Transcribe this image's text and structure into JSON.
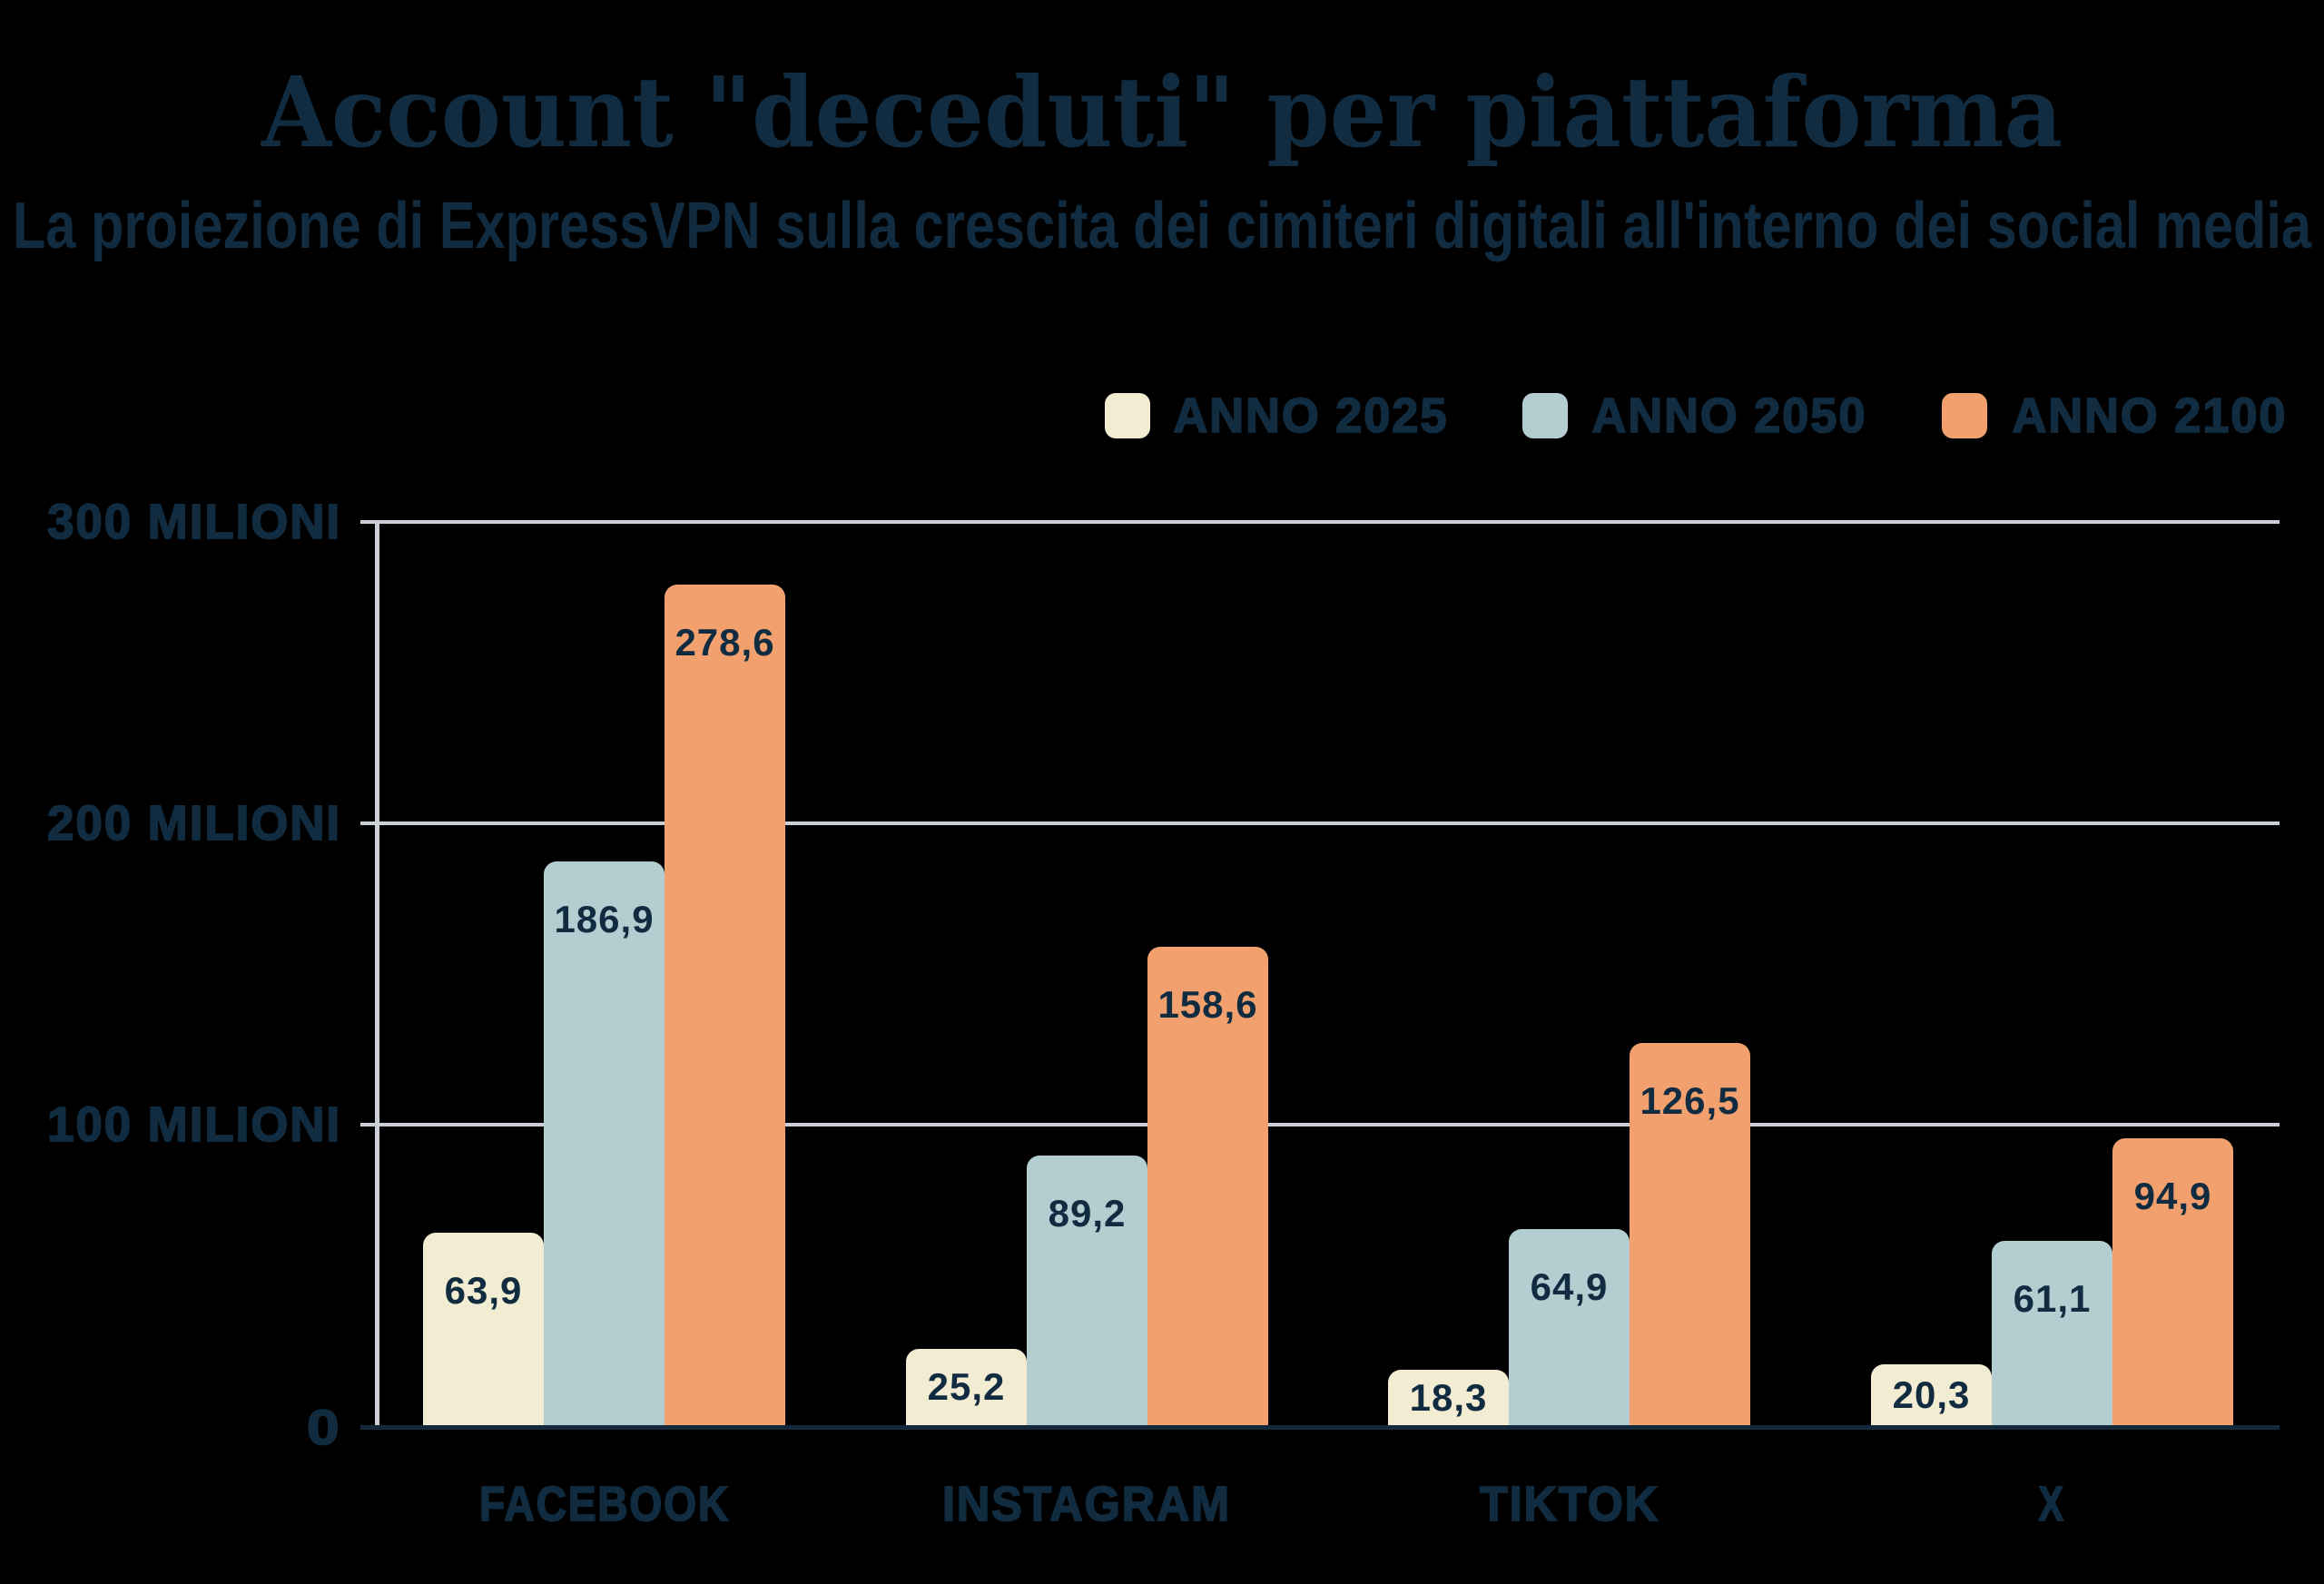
{
  "title": "Account \"deceduti\" per piattaforma",
  "subtitle": "La proiezione di ExpressVPN sulla crescita dei cimiteri digitali all'interno dei social media",
  "colors": {
    "background": "#000000",
    "text": "#112c40",
    "anno_2025": "#f2ecd2",
    "anno_2050": "#b4cdd1",
    "anno_2100": "#f2a06e",
    "gridline": "#cbd0d6",
    "baseline": "#14293b"
  },
  "legend": {
    "items": [
      {
        "label": "ANNO 2025",
        "color": "#f2ecd2"
      },
      {
        "label": "ANNO 2050",
        "color": "#b4cdd1"
      },
      {
        "label": "ANNO 2100",
        "color": "#f2a06e"
      }
    ]
  },
  "y_axis": {
    "ticks": [
      {
        "label": "300 MILIONI",
        "value": 300
      },
      {
        "label": "200 MILIONI",
        "value": 200
      },
      {
        "label": "100 MILIONI",
        "value": 100
      },
      {
        "label": "0",
        "value": 0
      }
    ]
  },
  "chart_data": {
    "type": "bar",
    "title": "Account \"deceduti\" per piattaforma",
    "subtitle": "La proiezione di ExpressVPN sulla crescita dei cimiteri digitali all'interno dei social media",
    "categories": [
      "FACEBOOK",
      "INSTAGRAM",
      "TIKTOK",
      "X"
    ],
    "series": [
      {
        "name": "ANNO 2025",
        "color": "#f2ecd2",
        "values": [
          63.9,
          25.2,
          18.3,
          20.3
        ],
        "labels": [
          "63,9",
          "25,2",
          "18,3",
          "20,3"
        ]
      },
      {
        "name": "ANNO 2050",
        "color": "#b4cdd1",
        "values": [
          186.9,
          89.2,
          64.9,
          61.1
        ],
        "labels": [
          "186,9",
          "89,2",
          "64,9",
          "61,1"
        ]
      },
      {
        "name": "ANNO 2100",
        "color": "#f2a06e",
        "values": [
          278.6,
          158.6,
          126.5,
          94.9
        ],
        "labels": [
          "278,6",
          "158,6",
          "126,5",
          "94,9"
        ]
      }
    ],
    "ylabel": "",
    "xlabel": "",
    "ylim": [
      0,
      300
    ],
    "grid": "horizontal",
    "legend_position": "top-right"
  }
}
